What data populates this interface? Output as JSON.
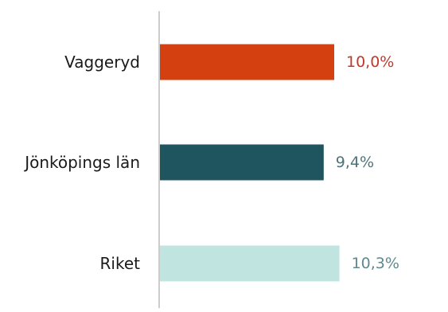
{
  "chart_data": {
    "type": "bar",
    "orientation": "horizontal",
    "categories": [
      "Vaggeryd",
      "Jönköpings län",
      "Riket"
    ],
    "values": [
      10.0,
      9.4,
      10.3
    ],
    "value_labels": [
      "10,0%",
      "9,4%",
      "10,3%"
    ],
    "colors": [
      "#D4400F",
      "#1F555E",
      "#C0E5E1"
    ],
    "label_colors": [
      "#C0392B",
      "#4E747A",
      "#5E8A8E"
    ],
    "axis_color": "#cccccc",
    "xlim": [
      0,
      16.5
    ],
    "grid": false,
    "legend": "none",
    "title": "",
    "xlabel": "",
    "ylabel": ""
  }
}
